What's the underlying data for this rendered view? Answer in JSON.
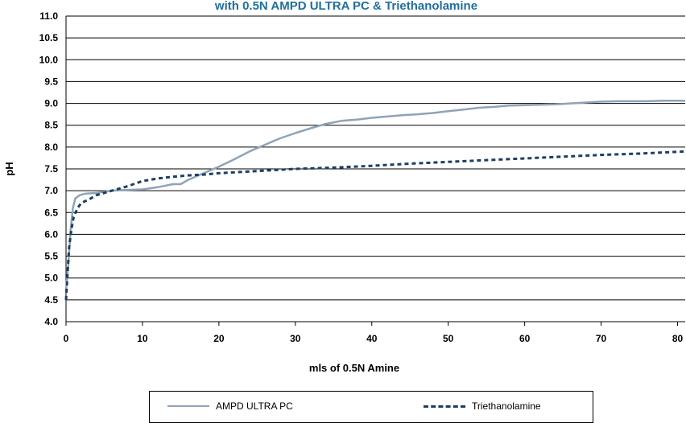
{
  "chart_data": {
    "type": "line",
    "title": "with 0.5N AMPD ULTRA PC & Triethanolamine",
    "xlabel": "mls of 0.5N Amine",
    "ylabel": "pH",
    "xlim": [
      0,
      81
    ],
    "ylim": [
      4.0,
      11.0
    ],
    "x_ticks": [
      "0",
      "10",
      "20",
      "30",
      "40",
      "50",
      "60",
      "70",
      "80"
    ],
    "y_ticks": [
      "4.0",
      "4.5",
      "5.0",
      "5.5",
      "6.0",
      "6.5",
      "7.0",
      "7.5",
      "8.0",
      "8.5",
      "9.0",
      "9.5",
      "10.0",
      "10.5",
      "11.0"
    ],
    "grid": "horizontal",
    "legend_position": "bottom",
    "series": [
      {
        "name": "AMPD ULTRA PC",
        "color": "#8fa3b5",
        "style": "solid",
        "x": [
          0,
          0.3,
          0.6,
          0.9,
          1.2,
          1.8,
          2.5,
          4,
          6,
          8,
          10,
          12,
          14,
          15,
          16,
          18,
          20,
          22,
          24,
          26,
          28,
          30,
          32,
          34,
          36,
          38,
          40,
          42,
          44,
          46,
          48,
          50,
          52,
          54,
          56,
          58,
          60,
          62,
          64,
          66,
          68,
          70,
          72,
          74,
          76,
          78,
          80,
          81
        ],
        "y": [
          4.7,
          5.3,
          6.1,
          6.6,
          6.82,
          6.9,
          6.93,
          6.95,
          7.0,
          7.02,
          7.03,
          7.08,
          7.15,
          7.15,
          7.25,
          7.4,
          7.55,
          7.72,
          7.9,
          8.05,
          8.2,
          8.32,
          8.43,
          8.53,
          8.6,
          8.63,
          8.67,
          8.7,
          8.73,
          8.75,
          8.78,
          8.82,
          8.86,
          8.9,
          8.92,
          8.95,
          8.96,
          8.97,
          8.98,
          9.0,
          9.02,
          9.04,
          9.05,
          9.05,
          9.05,
          9.06,
          9.06,
          9.06
        ]
      },
      {
        "name": "Triethanolamine",
        "color": "#1b3f63",
        "style": "dotted",
        "x": [
          0,
          0.2,
          0.4,
          0.7,
          1.0,
          1.5,
          2.0,
          3,
          4,
          6,
          8,
          10,
          12,
          14,
          16,
          18,
          20,
          25,
          30,
          35,
          40,
          45,
          50,
          55,
          60,
          65,
          70,
          75,
          81
        ],
        "y": [
          4.5,
          5.1,
          5.7,
          6.1,
          6.4,
          6.6,
          6.72,
          6.8,
          6.9,
          7.0,
          7.1,
          7.22,
          7.28,
          7.32,
          7.35,
          7.37,
          7.4,
          7.45,
          7.5,
          7.53,
          7.57,
          7.62,
          7.66,
          7.7,
          7.74,
          7.78,
          7.82,
          7.85,
          7.9
        ]
      }
    ]
  }
}
